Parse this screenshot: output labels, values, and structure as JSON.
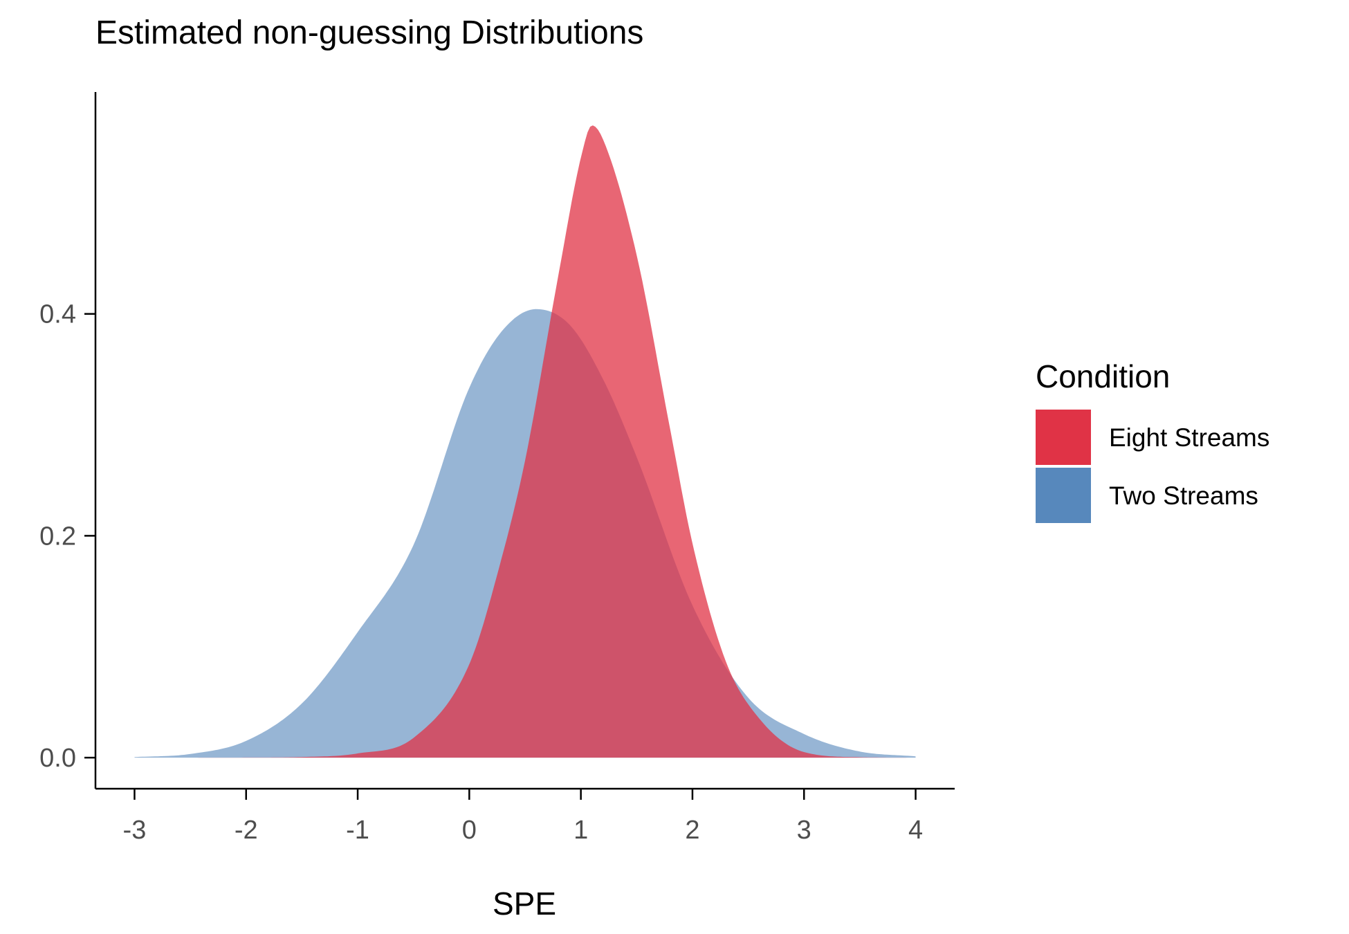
{
  "chart_data": {
    "type": "area",
    "title": "Estimated non-guessing Distributions",
    "xlabel": "SPE",
    "ylabel": "",
    "xlim": [
      -3.35,
      4.35
    ],
    "ylim": [
      -0.028,
      0.6
    ],
    "x_ticks": [
      -3,
      -2,
      -1,
      0,
      1,
      2,
      3,
      4
    ],
    "x_tick_labels": [
      "-3",
      "-2",
      "-1",
      "0",
      "1",
      "2",
      "3",
      "4"
    ],
    "y_ticks": [
      0.0,
      0.2,
      0.4
    ],
    "y_tick_labels": [
      "0.0",
      "0.2",
      "0.4"
    ],
    "grid": false,
    "legend": {
      "title": "Condition",
      "placement": "right"
    },
    "series": [
      {
        "name": "Two Streams",
        "color": "#5788BC",
        "fill_opacity": 0.62,
        "x": [
          -3.0,
          -2.5,
          -2.0,
          -1.5,
          -1.0,
          -0.5,
          0.0,
          0.3,
          0.6,
          0.9,
          1.2,
          1.5,
          2.0,
          2.5,
          3.0,
          3.5,
          4.0
        ],
        "y": [
          0.0005,
          0.0033,
          0.0151,
          0.0489,
          0.1132,
          0.1917,
          0.3334,
          0.3854,
          0.4043,
          0.3901,
          0.3409,
          0.271,
          0.1373,
          0.054,
          0.0213,
          0.0055,
          0.0012
        ]
      },
      {
        "name": "Eight Streams",
        "color": "#E03346",
        "fill_opacity": 0.75,
        "x": [
          -3.0,
          -2.0,
          -1.5,
          -1.0,
          -0.5,
          0.0,
          0.3,
          0.5,
          0.8,
          1.0,
          1.1,
          1.2,
          1.5,
          1.8,
          2.0,
          2.3,
          2.6,
          3.0,
          3.5,
          4.0
        ],
        "y": [
          0.0,
          0.0001,
          0.0006,
          0.0038,
          0.0178,
          0.0842,
          0.1837,
          0.2678,
          0.4357,
          0.5407,
          0.57,
          0.557,
          0.453,
          0.2961,
          0.1932,
          0.0865,
          0.0351,
          0.005,
          0.0004,
          0.0
        ]
      }
    ]
  }
}
